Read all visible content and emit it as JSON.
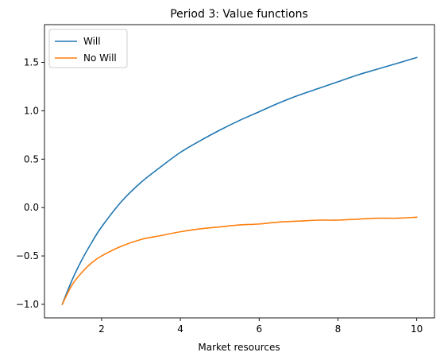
{
  "chart_data": {
    "type": "line",
    "title": "Period 3: Value functions",
    "xlabel": "Market resources",
    "ylabel": "",
    "xlim": [
      0.55,
      10.45
    ],
    "ylim": [
      -1.14,
      1.89
    ],
    "xticks": [
      2,
      4,
      6,
      8,
      10
    ],
    "yticks": [
      -1.0,
      -0.5,
      0.0,
      0.5,
      1.0,
      1.5
    ],
    "xtick_labels": [
      "2",
      "4",
      "6",
      "8",
      "10"
    ],
    "ytick_labels": [
      "−1.0",
      "−0.5",
      "0.0",
      "0.5",
      "1.0",
      "1.5"
    ],
    "grid": false,
    "legend_position": "top-left",
    "x": [
      1.0,
      1.25,
      1.5,
      1.75,
      2.0,
      2.5,
      3.0,
      3.5,
      4.0,
      4.5,
      5.0,
      5.5,
      6.0,
      6.5,
      7.0,
      7.5,
      8.0,
      8.5,
      9.0,
      9.5,
      10.0
    ],
    "series": [
      {
        "name": "Will",
        "color": "#1f77b4",
        "values": [
          -1.0,
          -0.75,
          -0.54,
          -0.36,
          -0.2,
          0.06,
          0.26,
          0.42,
          0.57,
          0.69,
          0.8,
          0.9,
          0.99,
          1.08,
          1.16,
          1.23,
          1.3,
          1.37,
          1.43,
          1.49,
          1.55
        ]
      },
      {
        "name": "No Will",
        "color": "#ff7f0e",
        "values": [
          -1.0,
          -0.8,
          -0.67,
          -0.57,
          -0.5,
          -0.4,
          -0.33,
          -0.29,
          -0.25,
          -0.22,
          -0.2,
          -0.18,
          -0.17,
          -0.15,
          -0.14,
          -0.13,
          -0.13,
          -0.12,
          -0.11,
          -0.11,
          -0.1
        ]
      }
    ]
  }
}
